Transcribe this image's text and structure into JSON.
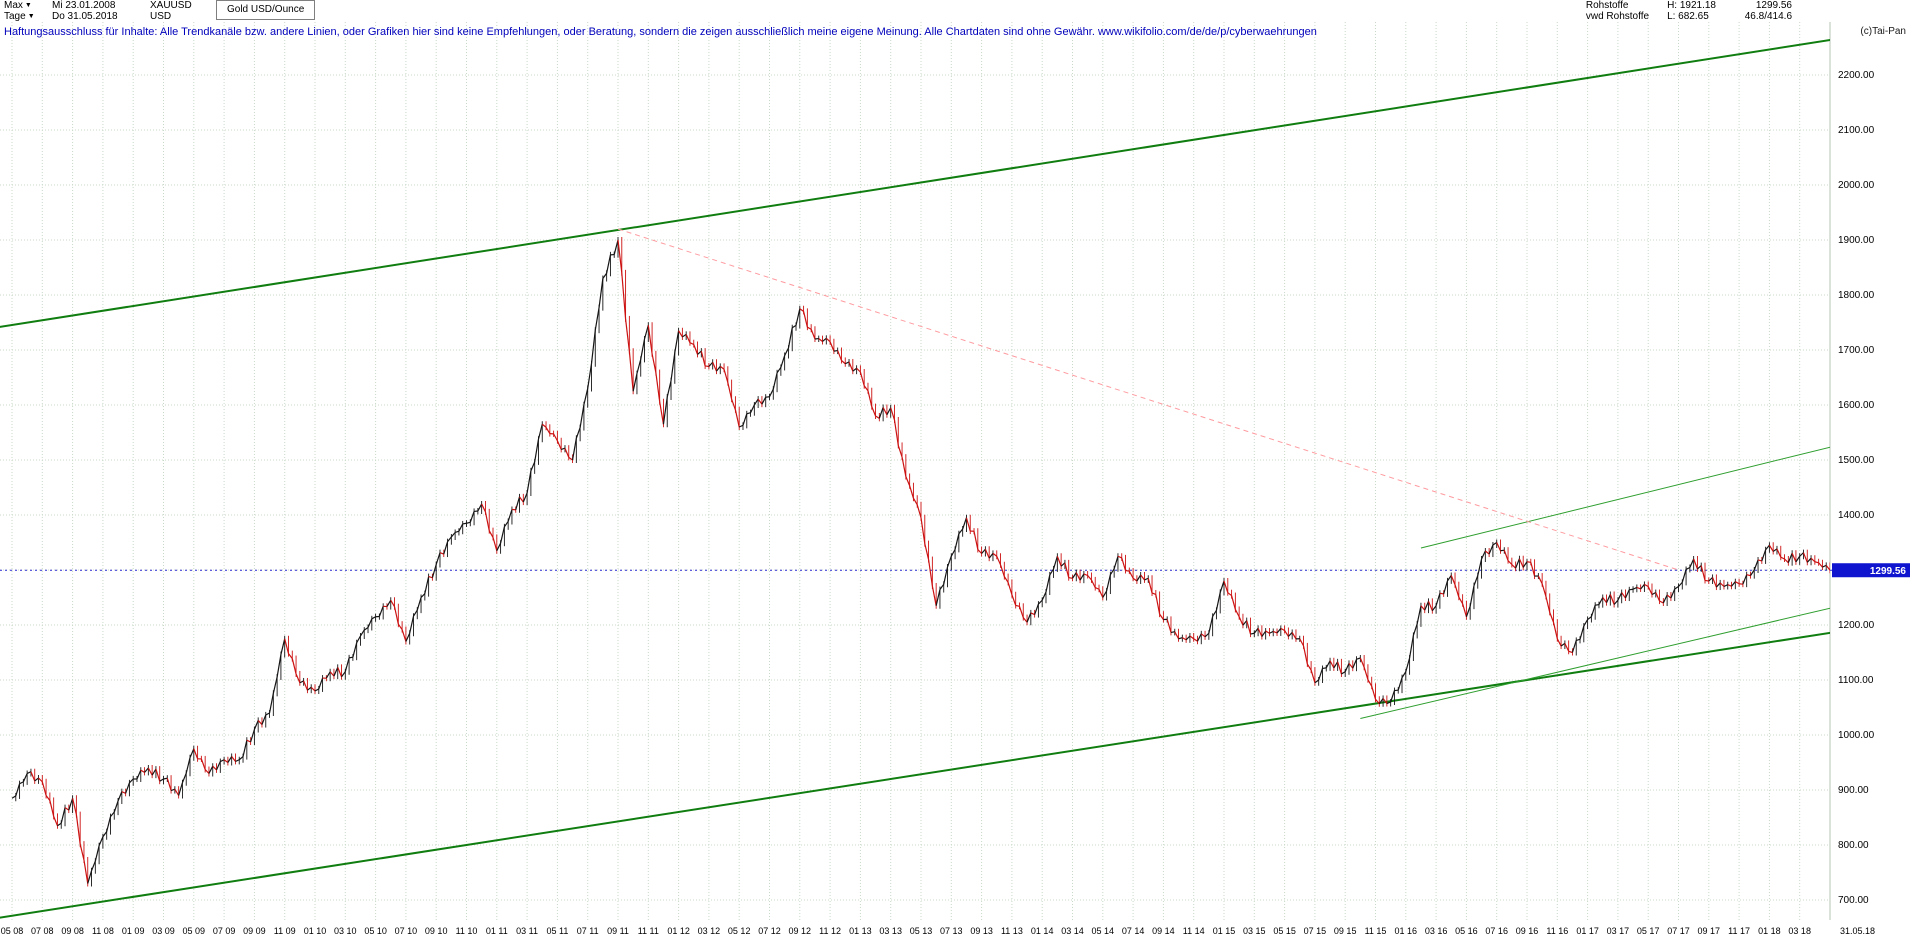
{
  "header": {
    "range_label": "Max",
    "period_label": "Tage",
    "start_date": "Mi 23.01.2008",
    "end_date": "Do 31.05.2018",
    "symbol": "XAUUSD",
    "currency": "USD",
    "instrument_name": "Gold USD/Ounce",
    "right": {
      "category": "Rohstoffe",
      "provider": "vwd Rohstoffe",
      "high": "H: 1921.18",
      "low": "L: 682.65",
      "last": "1299.56",
      "range_stat": "46.8/414.6",
      "copyright": "(c)Tai-Pan"
    }
  },
  "disclaimer": "Haftungsausschluss für Inhalte: Alle Trendkanäle bzw. andere Linien, oder Grafiken hier sind keine Empfehlungen, oder Beratung, sondern die zeigen ausschließlich meine eigene Meinung. Alle Chartdaten sind ohne Gewähr.  www.wikifolio.com/de/de/p/cyberwaehrungen",
  "price_marker": {
    "value": "1299.56"
  },
  "chart_data": {
    "type": "line",
    "title": "Gold USD/Ounce (XAUUSD)",
    "xlabel": "",
    "ylabel": "USD per Ounce",
    "x_start": "2008-05",
    "x_interval": "monthly",
    "values": [
      885,
      930,
      915,
      835,
      885,
      730,
      815,
      880,
      920,
      940,
      920,
      890,
      975,
      930,
      955,
      955,
      1010,
      1040,
      1175,
      1095,
      1080,
      1115,
      1115,
      1180,
      1215,
      1245,
      1170,
      1250,
      1310,
      1360,
      1385,
      1420,
      1335,
      1410,
      1440,
      1565,
      1535,
      1500,
      1630,
      1830,
      1900,
      1625,
      1745,
      1565,
      1735,
      1710,
      1670,
      1665,
      1560,
      1600,
      1615,
      1690,
      1775,
      1720,
      1715,
      1675,
      1660,
      1580,
      1595,
      1470,
      1395,
      1235,
      1325,
      1395,
      1330,
      1325,
      1255,
      1205,
      1245,
      1325,
      1285,
      1290,
      1250,
      1325,
      1285,
      1285,
      1210,
      1175,
      1175,
      1185,
      1280,
      1215,
      1185,
      1185,
      1190,
      1175,
      1095,
      1135,
      1115,
      1140,
      1065,
      1060,
      1115,
      1235,
      1235,
      1290,
      1215,
      1320,
      1350,
      1310,
      1315,
      1275,
      1175,
      1150,
      1210,
      1250,
      1245,
      1265,
      1270,
      1240,
      1270,
      1320,
      1280,
      1270,
      1275,
      1300,
      1345,
      1320,
      1325,
      1315,
      1299.56
    ],
    "x_tick_labels": [
      "05 08",
      "07 08",
      "09 08",
      "11 08",
      "01 09",
      "03 09",
      "05 09",
      "07 09",
      "09 09",
      "11 09",
      "01 10",
      "03 10",
      "05 10",
      "07 10",
      "09 10",
      "11 10",
      "01 11",
      "03 11",
      "05 11",
      "07 11",
      "09 11",
      "11 11",
      "01 12",
      "03 12",
      "05 12",
      "07 12",
      "09 12",
      "11 12",
      "01 13",
      "03 13",
      "05 13",
      "07 13",
      "09 13",
      "11 13",
      "01 14",
      "03 14",
      "05 14",
      "07 14",
      "09 14",
      "11 14",
      "01 15",
      "03 15",
      "05 15",
      "07 15",
      "09 15",
      "11 15",
      "01 16",
      "03 16",
      "05 16",
      "07 16",
      "09 16",
      "11 16",
      "01 17",
      "03 17",
      "05 17",
      "07 17",
      "09 17",
      "11 17",
      "01 18",
      "03 18"
    ],
    "x_end_label": "31.05.18",
    "y_ticks": [
      700,
      800,
      900,
      1000,
      1100,
      1200,
      1300,
      1400,
      1500,
      1600,
      1700,
      1800,
      1900,
      2000,
      2100,
      2200
    ],
    "ylim": [
      672,
      2296
    ],
    "grid": true,
    "legend": "none",
    "last_price": 1299.56,
    "high": 1921.18,
    "low": 682.65,
    "colors": {
      "up": "#151515",
      "down": "#cc1111",
      "channel": "#0f7d0f",
      "minor": "#2e9e2e",
      "downtrend": "#ff9ba0",
      "price_line": "#2a2ad0",
      "price_tag_bg": "#0f14cf",
      "price_tag_text": "#ffffff",
      "grid": "#c9d9c9",
      "axis_text": "#000000"
    },
    "trend_lines": [
      {
        "name": "upper-channel",
        "points": [
          [
            -0.8,
            1742
          ],
          [
            121,
            2268
          ]
        ],
        "color_key": "channel",
        "width": 2
      },
      {
        "name": "lower-channel",
        "points": [
          [
            -0.8,
            668
          ],
          [
            121,
            1190
          ]
        ],
        "color_key": "channel",
        "width": 2
      },
      {
        "name": "minor-resistance",
        "points": [
          [
            93,
            1340
          ],
          [
            121,
            1530
          ]
        ],
        "color_key": "minor",
        "width": 1
      },
      {
        "name": "minor-support",
        "points": [
          [
            89,
            1030
          ],
          [
            121,
            1237
          ]
        ],
        "color_key": "minor",
        "width": 1
      },
      {
        "name": "downtrend-line",
        "points": [
          [
            40,
            1920
          ],
          [
            110,
            1300
          ]
        ],
        "color_key": "downtrend",
        "width": 1,
        "dash": "5 4"
      },
      {
        "name": "current-price-line",
        "horizontal": 1299.56,
        "color_key": "price_line",
        "width": 1,
        "dash": "2 3"
      }
    ]
  }
}
